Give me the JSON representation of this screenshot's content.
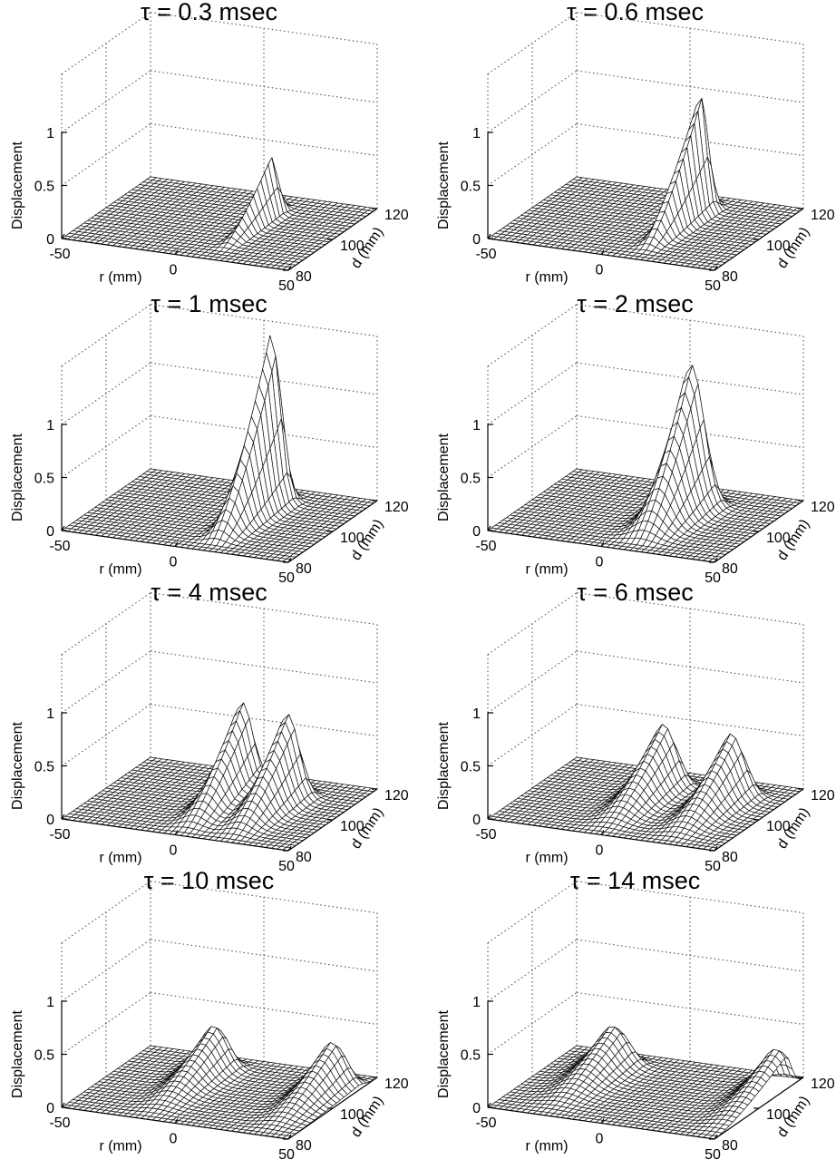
{
  "figure": {
    "panel_titles": [
      "τ = 0.3 msec",
      "τ = 0.6 msec",
      "τ = 1 msec",
      "τ = 2 msec",
      "τ = 4 msec",
      "τ = 6 msec",
      "τ = 10 msec",
      "τ = 14 msec"
    ]
  },
  "chart_data": [
    {
      "type": "surface",
      "title": "τ = 0.3 msec",
      "tau_msec": 0.3,
      "xlabel": "r (mm)",
      "ylabel": "d (mm)",
      "zlabel": "Displacement",
      "xlim": [
        -50,
        50
      ],
      "ylim": [
        80,
        120
      ],
      "zlim": [
        0,
        1
      ],
      "xticks": [
        "-50",
        "0",
        "50"
      ],
      "yticks": [
        "80",
        "100",
        "120"
      ],
      "zticks": [
        "0",
        "0.5",
        "1"
      ],
      "grid": true,
      "features": [
        {
          "kind": "ridge",
          "r_center": 15,
          "r_width": 3,
          "d_from": 85,
          "peak_d": 108,
          "peak_height": 0.55
        }
      ]
    },
    {
      "type": "surface",
      "title": "τ = 0.6 msec",
      "tau_msec": 0.6,
      "xlabel": "r (mm)",
      "ylabel": "d (mm)",
      "zlabel": "Displacement",
      "xlim": [
        -50,
        50
      ],
      "ylim": [
        80,
        120
      ],
      "zlim": [
        0,
        1
      ],
      "xticks": [
        "-50",
        "0",
        "50"
      ],
      "yticks": [
        "80",
        "100",
        "120"
      ],
      "zticks": [
        "0",
        "0.5",
        "1"
      ],
      "grid": true,
      "features": [
        {
          "kind": "ridge",
          "r_center": 14,
          "r_width": 4,
          "d_from": 84,
          "peak_d": 110,
          "peak_height": 1.15
        }
      ]
    },
    {
      "type": "surface",
      "title": "τ = 1 msec",
      "tau_msec": 1,
      "xlabel": "r (mm)",
      "ylabel": "d (mm)",
      "zlabel": "Displacement",
      "xlim": [
        -50,
        50
      ],
      "ylim": [
        80,
        120
      ],
      "zlim": [
        0,
        1
      ],
      "xticks": [
        "-50",
        "0",
        "50"
      ],
      "yticks": [
        "80",
        "100",
        "120"
      ],
      "zticks": [
        "0",
        "0.5",
        "1"
      ],
      "grid": true,
      "features": [
        {
          "kind": "ridge",
          "r_center": 13,
          "r_width": 5.5,
          "d_from": 83,
          "peak_d": 110,
          "peak_height": 1.6
        }
      ]
    },
    {
      "type": "surface",
      "title": "τ = 2 msec",
      "tau_msec": 2,
      "xlabel": "r (mm)",
      "ylabel": "d (mm)",
      "zlabel": "Displacement",
      "xlim": [
        -50,
        50
      ],
      "ylim": [
        80,
        120
      ],
      "zlim": [
        0,
        1
      ],
      "xticks": [
        "-50",
        "0",
        "50"
      ],
      "yticks": [
        "80",
        "100",
        "120"
      ],
      "zticks": [
        "0",
        "0.5",
        "1"
      ],
      "grid": true,
      "features": [
        {
          "kind": "ridge",
          "r_center": 12,
          "r_width": 8,
          "d_from": 83,
          "peak_d": 108,
          "peak_height": 1.35
        }
      ]
    },
    {
      "type": "surface",
      "title": "τ = 4 msec",
      "tau_msec": 4,
      "xlabel": "r (mm)",
      "ylabel": "d (mm)",
      "zlabel": "Displacement",
      "xlim": [
        -50,
        50
      ],
      "ylim": [
        80,
        120
      ],
      "zlim": [
        0,
        1
      ],
      "xticks": [
        "-50",
        "0",
        "50"
      ],
      "yticks": [
        "80",
        "100",
        "120"
      ],
      "zticks": [
        "0",
        "0.5",
        "1"
      ],
      "grid": true,
      "features": [
        {
          "kind": "ridge",
          "r_center": 2,
          "r_width": 7,
          "d_from": 81,
          "peak_d": 108,
          "peak_height": 0.85
        },
        {
          "kind": "ridge",
          "r_center": 22,
          "r_width": 7,
          "d_from": 81,
          "peak_d": 108,
          "peak_height": 0.8
        }
      ]
    },
    {
      "type": "surface",
      "title": "τ = 6 msec",
      "tau_msec": 6,
      "xlabel": "r (mm)",
      "ylabel": "d (mm)",
      "zlabel": "Displacement",
      "xlim": [
        -50,
        50
      ],
      "ylim": [
        80,
        120
      ],
      "zlim": [
        0,
        1
      ],
      "xticks": [
        "-50",
        "0",
        "50"
      ],
      "yticks": [
        "80",
        "100",
        "120"
      ],
      "zticks": [
        "0",
        "0.5",
        "1"
      ],
      "grid": true,
      "features": [
        {
          "kind": "ridge",
          "r_center": -2,
          "r_width": 8,
          "d_from": 81,
          "peak_d": 110,
          "peak_height": 0.6
        },
        {
          "kind": "ridge",
          "r_center": 28,
          "r_width": 8,
          "d_from": 81,
          "peak_d": 110,
          "peak_height": 0.6
        }
      ]
    },
    {
      "type": "surface",
      "title": "τ = 10 msec",
      "tau_msec": 10,
      "xlabel": "r (mm)",
      "ylabel": "d (mm)",
      "zlabel": "Displacement",
      "xlim": [
        -50,
        50
      ],
      "ylim": [
        80,
        120
      ],
      "zlim": [
        0,
        1
      ],
      "xticks": [
        "-50",
        "0",
        "50"
      ],
      "yticks": [
        "80",
        "100",
        "120"
      ],
      "zticks": [
        "0",
        "0.5",
        "1"
      ],
      "grid": true,
      "features": [
        {
          "kind": "ridge",
          "r_center": -14,
          "r_width": 8,
          "d_from": 81,
          "peak_d": 112,
          "peak_height": 0.42
        },
        {
          "kind": "ridge",
          "r_center": 38,
          "r_width": 8,
          "d_from": 81,
          "peak_d": 112,
          "peak_height": 0.42
        }
      ]
    },
    {
      "type": "surface",
      "title": "τ = 14 msec",
      "tau_msec": 14,
      "xlabel": "r (mm)",
      "ylabel": "d (mm)",
      "zlabel": "Displacement",
      "xlim": [
        -50,
        50
      ],
      "ylim": [
        80,
        120
      ],
      "zlim": [
        0,
        1
      ],
      "xticks": [
        "-50",
        "0",
        "50"
      ],
      "yticks": [
        "80",
        "100",
        "120"
      ],
      "zticks": [
        "0",
        "0.5",
        "1"
      ],
      "grid": true,
      "features": [
        {
          "kind": "ridge",
          "r_center": -26,
          "r_width": 9,
          "d_from": 81,
          "peak_d": 112,
          "peak_height": 0.38
        },
        {
          "kind": "ridge",
          "r_center": 46,
          "r_width": 9,
          "d_from": 81,
          "peak_d": 112,
          "peak_height": 0.38
        }
      ]
    }
  ]
}
